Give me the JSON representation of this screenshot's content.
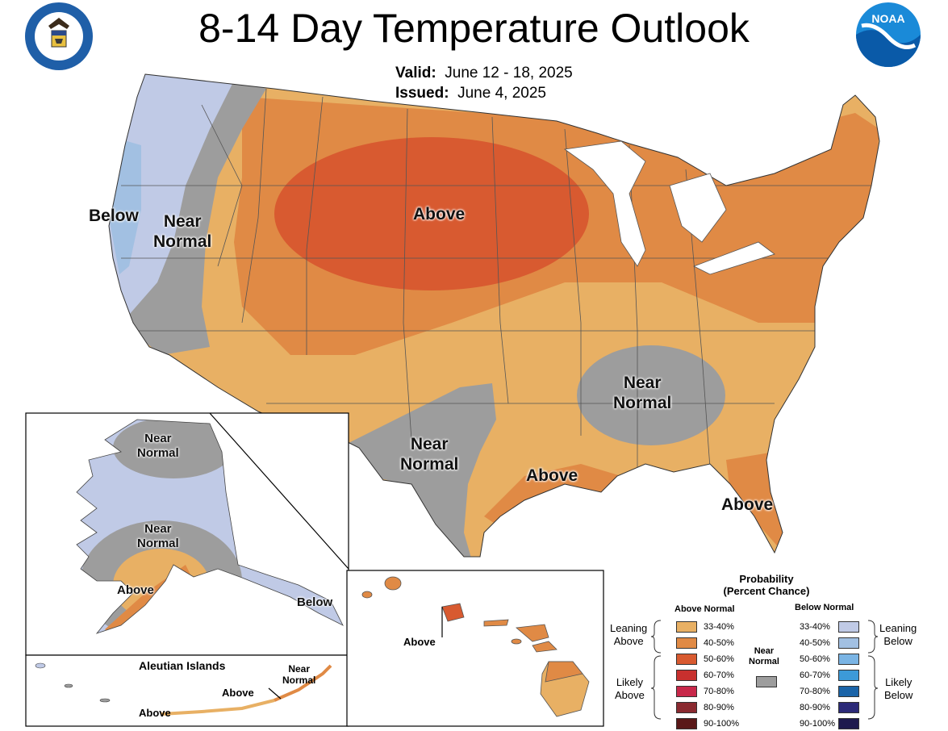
{
  "header": {
    "title": "8-14 Day Temperature Outlook",
    "valid_label": "Valid:",
    "valid_value": "June 12 - 18, 2025",
    "issued_label": "Issued:",
    "issued_value": "June 4, 2025",
    "left_seal": "DEPARTMENT OF COMMERCE • UNITED STATES OF AMERICA",
    "right_logo": "NOAA"
  },
  "map_labels": {
    "conus_below": "Below",
    "conus_nn_west": [
      "Near",
      "Normal"
    ],
    "conus_above_north": "Above",
    "conus_nn_se": [
      "Near",
      "Normal"
    ],
    "conus_nn_tx": [
      "Near",
      "Normal"
    ],
    "conus_above_gulf": "Above",
    "conus_above_fl": "Above",
    "ak_nn_north": [
      "Near",
      "Normal"
    ],
    "ak_nn_mid": [
      "Near",
      "Normal"
    ],
    "ak_above": "Above",
    "ak_below": "Below",
    "aleutian_title": "Aleutian Islands",
    "aleutian_nn": [
      "Near",
      "Normal"
    ],
    "aleutian_above_1": "Above",
    "aleutian_above_2": "Above",
    "hawaii_above": "Above"
  },
  "legend": {
    "title_1": "Probability",
    "title_2": "(Percent Chance)",
    "above_header": "Above Normal",
    "below_header": "Below Normal",
    "near_normal_label": [
      "Near",
      "Normal"
    ],
    "leaning_above": [
      "Leaning",
      "Above"
    ],
    "likely_above": [
      "Likely",
      "Above"
    ],
    "leaning_below": [
      "Leaning",
      "Below"
    ],
    "likely_below": [
      "Likely",
      "Below"
    ],
    "above_items": [
      {
        "range": "33-40%",
        "color": "#e8b064"
      },
      {
        "range": "40-50%",
        "color": "#e08a45"
      },
      {
        "range": "50-60%",
        "color": "#d85a30"
      },
      {
        "range": "60-70%",
        "color": "#c8302e"
      },
      {
        "range": "70-80%",
        "color": "#c8284a"
      },
      {
        "range": "80-90%",
        "color": "#8a2a30"
      },
      {
        "range": "90-100%",
        "color": "#5a1818"
      }
    ],
    "below_items": [
      {
        "range": "33-40%",
        "color": "#c0cae6"
      },
      {
        "range": "40-50%",
        "color": "#a2c0e2"
      },
      {
        "range": "50-60%",
        "color": "#7ab4e4"
      },
      {
        "range": "60-70%",
        "color": "#3c9ad8"
      },
      {
        "range": "70-80%",
        "color": "#1a64a8"
      },
      {
        "range": "80-90%",
        "color": "#2c2a78"
      },
      {
        "range": "90-100%",
        "color": "#1e1a4e"
      }
    ],
    "near_normal_color": "#9d9d9d"
  }
}
